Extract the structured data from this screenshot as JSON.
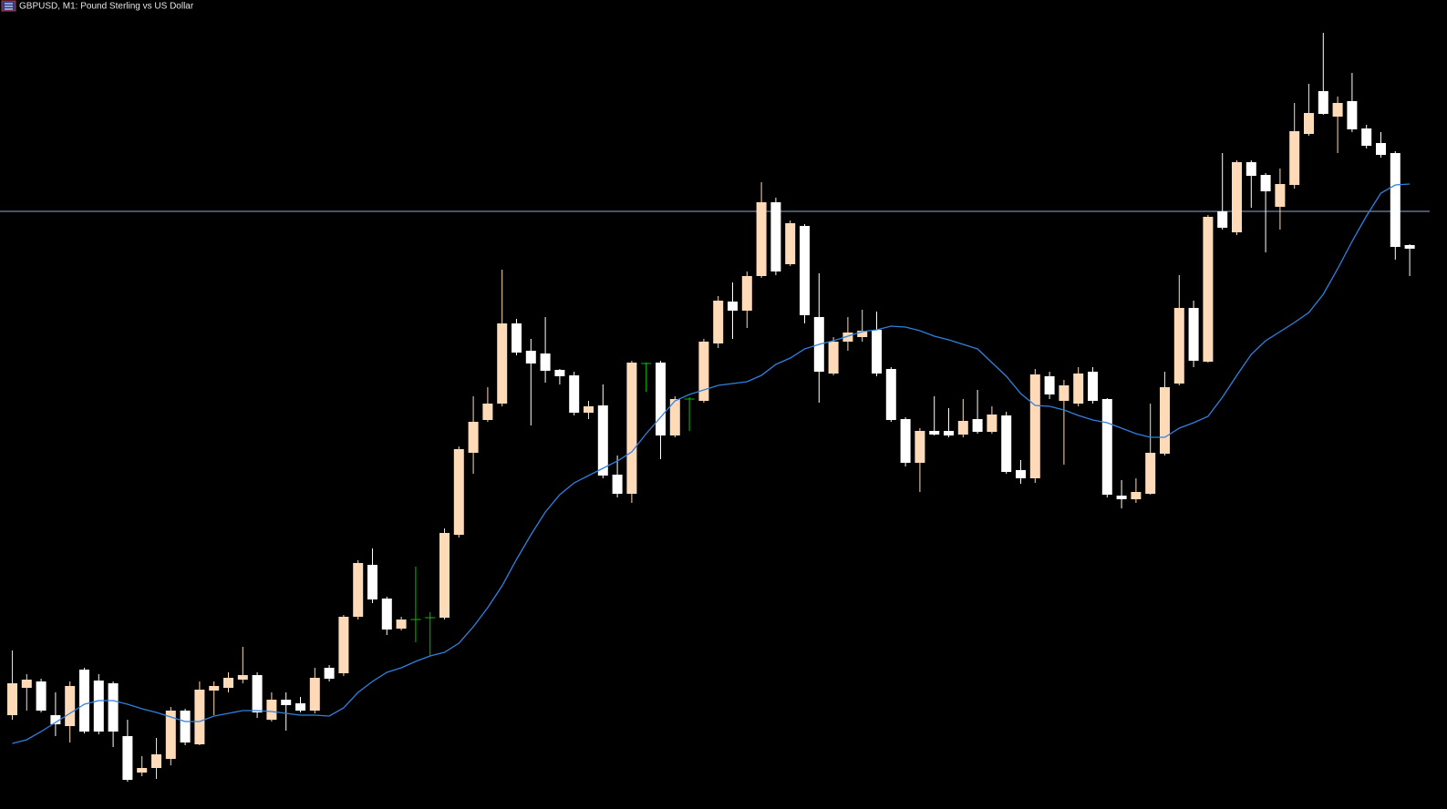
{
  "chart_data": {
    "type": "candlestick",
    "title": "GBPUSD, M1:  Pound Sterling vs US Dollar",
    "ylim": [
      0,
      888
    ],
    "up_color": "#ffdab9",
    "down_color": "#ffffff",
    "doji_color": "#00c000",
    "open": [
      103,
      133,
      140,
      103,
      91,
      153,
      141,
      138,
      80,
      40,
      45,
      55,
      108,
      71,
      130,
      133,
      142,
      147,
      98,
      120,
      116,
      108,
      155,
      149,
      211,
      268,
      231,
      198,
      208,
      210,
      210,
      301,
      391,
      427,
      445,
      533,
      503,
      500,
      482,
      476,
      435,
      443,
      367,
      346,
      489,
      490,
      410,
      450,
      448,
      511,
      557,
      547,
      585,
      666,
      598,
      640,
      540,
      478,
      513,
      518,
      526,
      483,
      428,
      380,
      415,
      415,
      411,
      428,
      414,
      432,
      372,
      363,
      475,
      448,
      445,
      480,
      450,
      344,
      340,
      346,
      390,
      467,
      550,
      491,
      656,
      633,
      710,
      696,
      661,
      685,
      741,
      788,
      760,
      777,
      747,
      731,
      720,
      619
    ],
    "high": [
      174,
      148,
      143,
      128,
      140,
      155,
      148,
      140,
      98,
      58,
      78,
      112,
      110,
      140,
      140,
      150,
      178,
      150,
      128,
      128,
      123,
      155,
      158,
      213,
      273,
      286,
      233,
      211,
      266,
      216,
      308,
      398,
      453,
      463,
      592,
      538,
      516,
      540,
      483,
      480,
      448,
      466,
      388,
      492,
      490,
      492,
      453,
      452,
      516,
      563,
      578,
      590,
      688,
      671,
      646,
      642,
      588,
      518,
      540,
      548,
      546,
      485,
      430,
      418,
      453,
      440,
      450,
      460,
      442,
      436,
      383,
      483,
      480,
      471,
      485,
      485,
      451,
      361,
      363,
      445,
      480,
      586,
      558,
      652,
      720,
      712,
      712,
      698,
      703,
      775,
      796,
      852,
      782,
      808,
      751,
      743,
      722,
      620
    ],
    "low": [
      98,
      108,
      106,
      80,
      73,
      83,
      82,
      68,
      30,
      36,
      33,
      48,
      70,
      70,
      103,
      128,
      138,
      100,
      96,
      86,
      106,
      105,
      140,
      146,
      208,
      226,
      191,
      196,
      183,
      168,
      208,
      298,
      368,
      425,
      442,
      498,
      421,
      468,
      466,
      432,
      428,
      363,
      342,
      336,
      458,
      384,
      408,
      415,
      446,
      506,
      516,
      528,
      583,
      586,
      596,
      533,
      446,
      476,
      503,
      513,
      475,
      425,
      376,
      348,
      410,
      408,
      408,
      412,
      412,
      368,
      357,
      358,
      450,
      378,
      442,
      445,
      342,
      330,
      336,
      345,
      388,
      465,
      485,
      490,
      636,
      630,
      660,
      611,
      636,
      681,
      739,
      762,
      720,
      743,
      725,
      715,
      603,
      585
    ],
    "close": [
      138,
      142,
      108,
      93,
      135,
      85,
      85,
      85,
      32,
      45,
      60,
      108,
      73,
      131,
      135,
      144,
      147,
      106,
      120,
      114,
      108,
      144,
      143,
      211,
      270,
      230,
      197,
      208,
      208,
      210,
      303,
      395,
      425,
      445,
      533,
      501,
      489,
      481,
      475,
      435,
      442,
      366,
      346,
      490,
      489,
      410,
      450,
      450,
      513,
      558,
      547,
      585,
      666,
      590,
      643,
      542,
      480,
      513,
      523,
      525,
      478,
      427,
      380,
      415,
      411,
      410,
      426,
      414,
      433,
      370,
      363,
      477,
      455,
      465,
      478,
      448,
      345,
      340,
      348,
      391,
      463,
      550,
      492,
      650,
      638,
      710,
      695,
      678,
      686,
      744,
      764,
      763,
      775,
      746,
      728,
      718,
      617,
      615
    ],
    "ma": {
      "color": "#2f80e0",
      "values": [
        72,
        76,
        85,
        95,
        105,
        115,
        119,
        119,
        115,
        110,
        106,
        101,
        96,
        96,
        102,
        105,
        108,
        108,
        107,
        105,
        103,
        103,
        102,
        111,
        128,
        140,
        150,
        155,
        162,
        168,
        172,
        182,
        200,
        221,
        245,
        274,
        301,
        326,
        345,
        358,
        366,
        374,
        382,
        392,
        412,
        430,
        448,
        455,
        460,
        465,
        467,
        469,
        476,
        488,
        495,
        505,
        510,
        514,
        519,
        524,
        526,
        530,
        529,
        525,
        519,
        515,
        510,
        505,
        490,
        475,
        456,
        443,
        442,
        438,
        432,
        427,
        424,
        418,
        412,
        408,
        408,
        418,
        424,
        431,
        452,
        476,
        499,
        514,
        524,
        534,
        545,
        565,
        593,
        623,
        651,
        676,
        685,
        686
      ]
    },
    "hline": {
      "value": 656,
      "color": "#8fa8c8"
    }
  }
}
